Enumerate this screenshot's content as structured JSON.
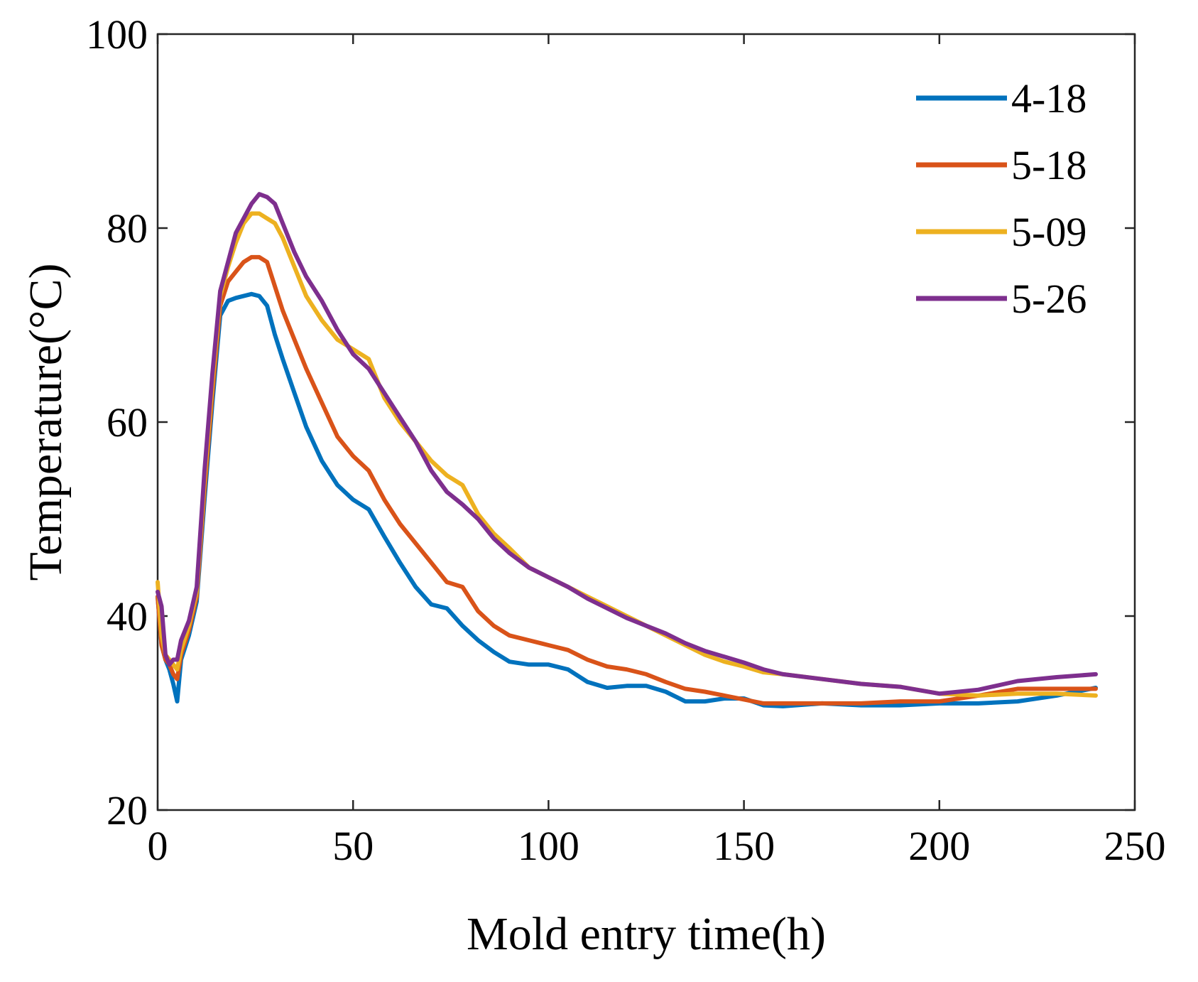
{
  "chart_data": {
    "type": "line",
    "title": "",
    "xlabel": "Mold entry time(h)",
    "ylabel": "Temperature(°C)",
    "xlim": [
      0,
      250
    ],
    "ylim": [
      20,
      100
    ],
    "xticks": [
      0,
      50,
      100,
      150,
      200,
      250
    ],
    "yticks": [
      20,
      40,
      60,
      80,
      100
    ],
    "grid": false,
    "legend_position": "top-right",
    "series": [
      {
        "name": "4-18",
        "color": "#0072BD",
        "x": [
          0,
          1,
          2,
          3,
          4,
          5,
          6,
          8,
          10,
          12,
          14,
          16,
          18,
          20,
          22,
          24,
          26,
          28,
          30,
          32,
          35,
          38,
          42,
          46,
          50,
          54,
          58,
          62,
          66,
          70,
          74,
          78,
          82,
          86,
          90,
          95,
          100,
          105,
          110,
          115,
          120,
          125,
          130,
          135,
          140,
          145,
          150,
          155,
          160,
          170,
          180,
          190,
          200,
          210,
          220,
          230,
          240
        ],
        "y": [
          42,
          37,
          35.5,
          34.5,
          33,
          31.2,
          35.5,
          38,
          41.5,
          52,
          62,
          71,
          72.5,
          72.8,
          73,
          73.2,
          73,
          72,
          69,
          66.5,
          63,
          59.5,
          56,
          53.5,
          52,
          51,
          48.2,
          45.5,
          43,
          41.2,
          40.8,
          39,
          37.5,
          36.3,
          35.3,
          35,
          35,
          34.5,
          33.2,
          32.6,
          32.8,
          32.8,
          32.2,
          31.2,
          31.2,
          31.5,
          31.5,
          30.8,
          30.7,
          31,
          30.8,
          30.8,
          31,
          31,
          31.2,
          31.8,
          32.6
        ]
      },
      {
        "name": "5-18",
        "color": "#D95319",
        "x": [
          0,
          1,
          2,
          3,
          4,
          5,
          6,
          8,
          10,
          12,
          14,
          16,
          18,
          20,
          22,
          24,
          26,
          28,
          30,
          32,
          35,
          38,
          42,
          46,
          50,
          54,
          58,
          62,
          66,
          70,
          74,
          78,
          82,
          86,
          90,
          95,
          100,
          105,
          110,
          115,
          120,
          125,
          130,
          135,
          140,
          145,
          150,
          155,
          160,
          170,
          180,
          190,
          200,
          210,
          220,
          230,
          240
        ],
        "y": [
          42,
          37,
          35.5,
          35,
          34,
          33.5,
          36,
          38.5,
          42,
          53,
          63,
          72,
          74.5,
          75.5,
          76.5,
          77,
          77,
          76.5,
          74,
          71.5,
          68.5,
          65.5,
          62,
          58.5,
          56.5,
          55,
          52,
          49.5,
          47.5,
          45.5,
          43.5,
          43,
          40.5,
          39,
          38,
          37.5,
          37,
          36.5,
          35.5,
          34.8,
          34.5,
          34,
          33.2,
          32.5,
          32.2,
          31.8,
          31.4,
          31,
          31,
          31,
          31,
          31.2,
          31.2,
          31.8,
          32.5,
          32.5,
          32.5
        ]
      },
      {
        "name": "5-09",
        "color": "#EDB120",
        "x": [
          0,
          1,
          2,
          3,
          4,
          5,
          6,
          8,
          10,
          12,
          14,
          16,
          18,
          20,
          22,
          24,
          26,
          28,
          30,
          32,
          35,
          38,
          42,
          46,
          50,
          54,
          58,
          62,
          66,
          70,
          74,
          78,
          82,
          86,
          90,
          95,
          100,
          105,
          110,
          115,
          120,
          125,
          130,
          135,
          140,
          145,
          150,
          155,
          160,
          170,
          180,
          190,
          200,
          210,
          220,
          230,
          240
        ],
        "y": [
          43.5,
          38,
          36,
          35.5,
          35,
          34.5,
          36.5,
          39,
          42.5,
          54,
          64,
          73,
          76,
          78.5,
          80.5,
          81.5,
          81.5,
          81,
          80.5,
          79,
          76,
          73,
          70.5,
          68.5,
          67.5,
          66.5,
          62.5,
          60,
          58,
          56,
          54.5,
          53.5,
          50.5,
          48.5,
          47,
          45,
          44,
          43,
          42,
          41,
          40,
          39,
          38,
          37,
          36,
          35.3,
          34.8,
          34.2,
          34,
          33.5,
          33,
          32.7,
          32,
          31.8,
          32,
          32,
          31.8
        ]
      },
      {
        "name": "5-26",
        "color": "#7E2F8E",
        "x": [
          0,
          1,
          2,
          3,
          4,
          5,
          6,
          8,
          10,
          12,
          14,
          16,
          18,
          20,
          22,
          24,
          26,
          28,
          30,
          32,
          35,
          38,
          42,
          46,
          50,
          54,
          58,
          62,
          66,
          70,
          74,
          78,
          82,
          86,
          90,
          95,
          100,
          105,
          110,
          115,
          120,
          125,
          130,
          135,
          140,
          145,
          150,
          155,
          160,
          170,
          180,
          190,
          200,
          210,
          220,
          230,
          240
        ],
        "y": [
          42.5,
          41,
          36,
          35,
          35.5,
          35.5,
          37.5,
          39.5,
          43,
          55,
          65,
          73.5,
          76.5,
          79.5,
          81,
          82.5,
          83.5,
          83.2,
          82.5,
          80.5,
          77.5,
          75,
          72.5,
          69.5,
          67,
          65.5,
          63,
          60.5,
          58,
          55,
          52.8,
          51.5,
          50,
          48,
          46.5,
          45,
          44,
          43,
          41.8,
          40.8,
          39.8,
          39,
          38.2,
          37.2,
          36.4,
          35.8,
          35.2,
          34.5,
          34,
          33.5,
          33,
          32.7,
          32,
          32.4,
          33.3,
          33.7,
          34
        ]
      }
    ]
  }
}
